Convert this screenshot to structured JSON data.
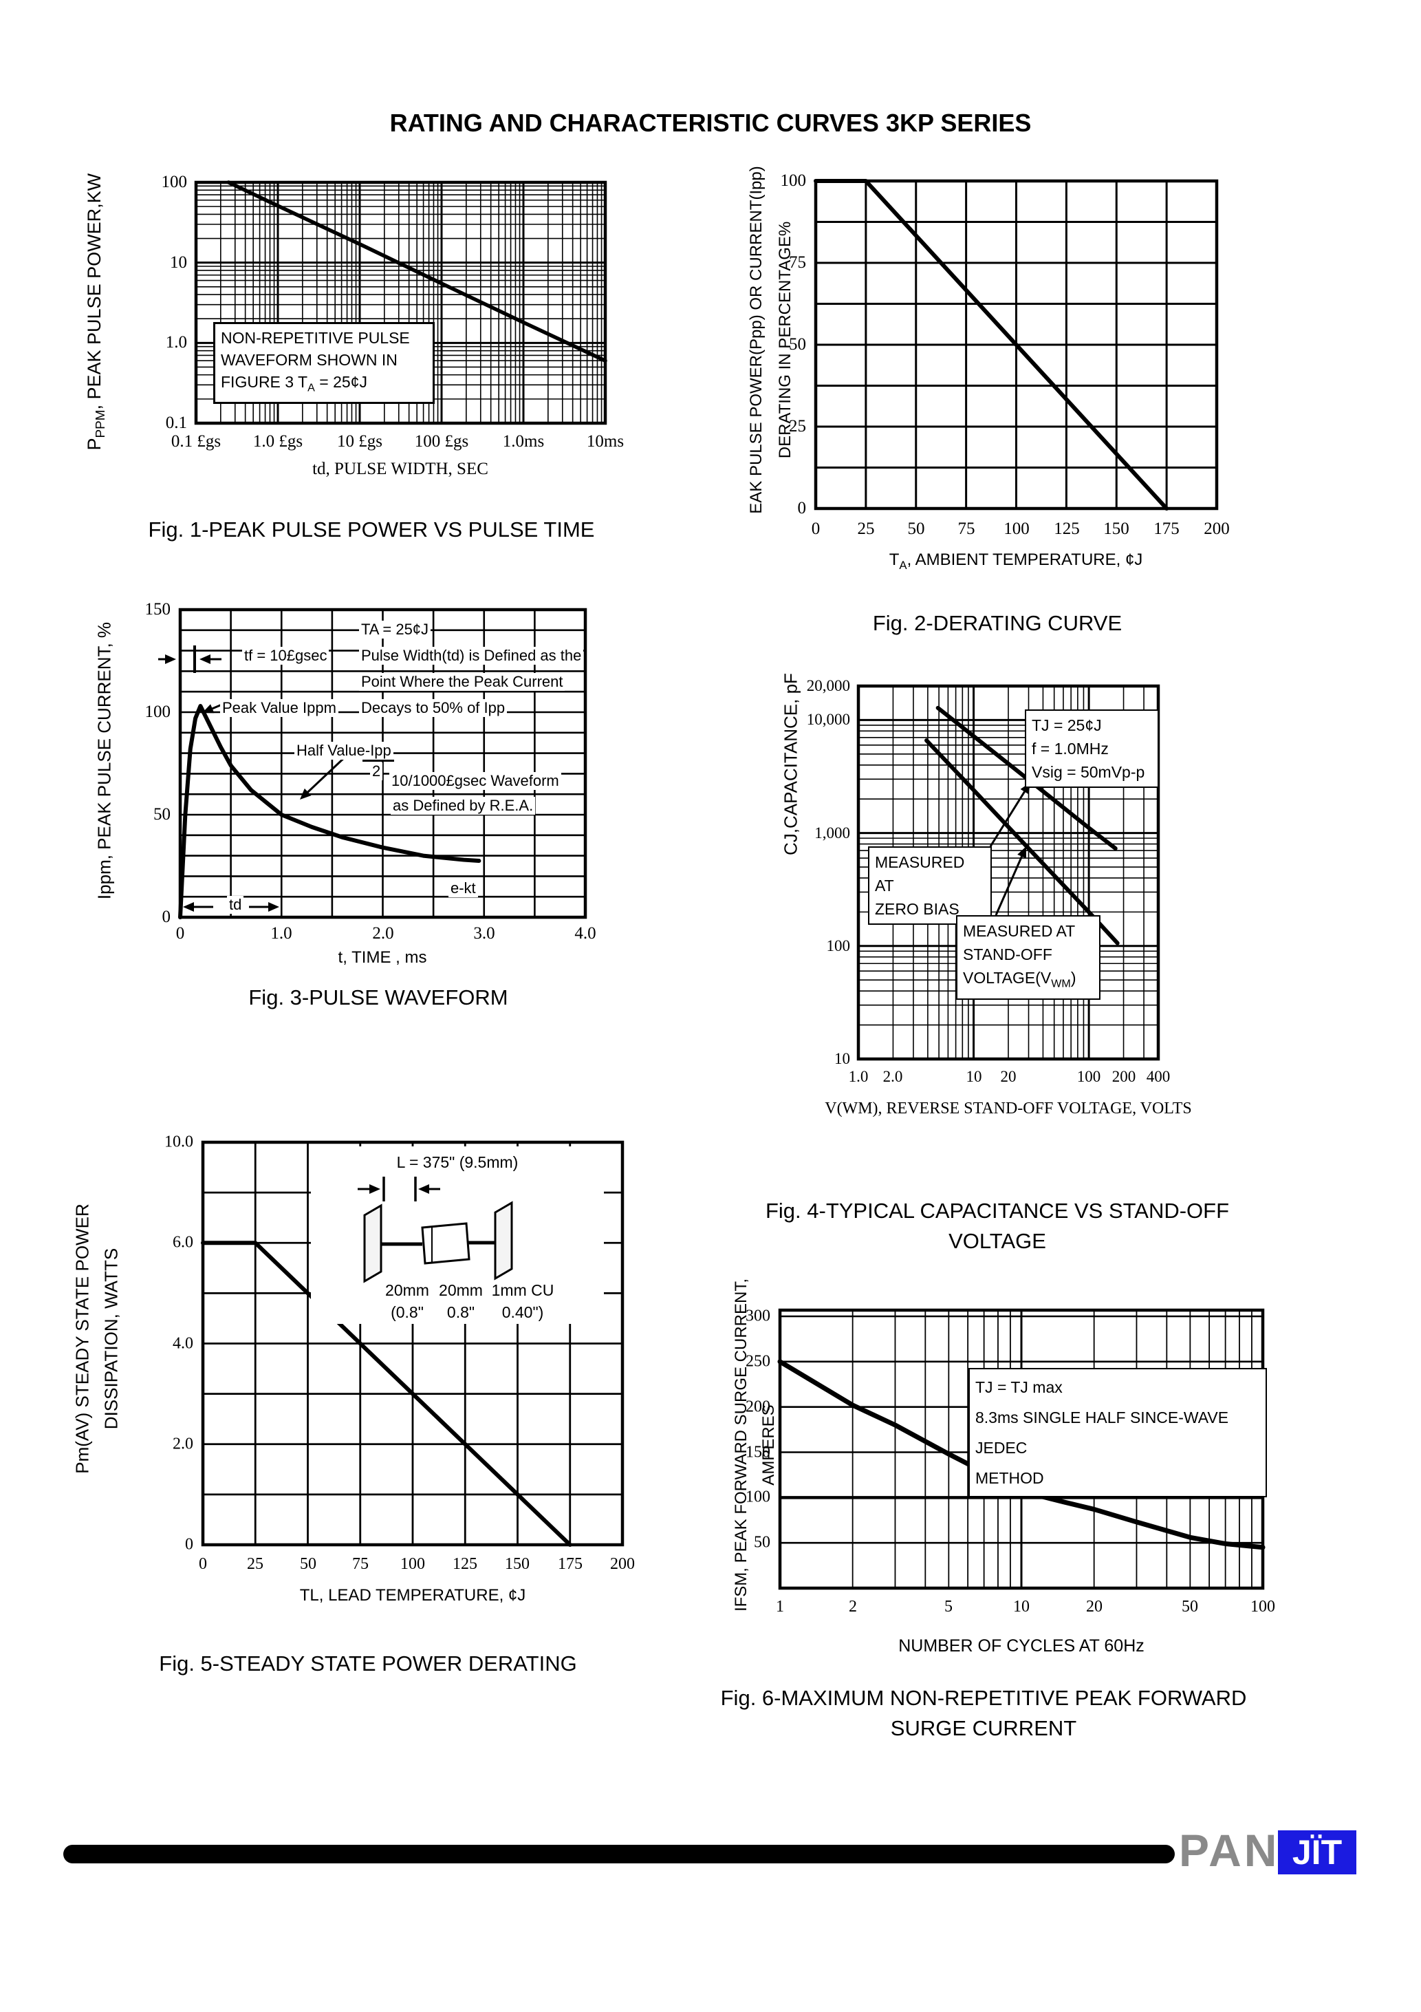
{
  "page": {
    "title": "RATING AND CHARACTERISTIC CURVES 3KP SERIES"
  },
  "figures": {
    "fig1": {
      "ylabel_main": "P",
      "ylabel_sub": "PPM",
      "ylabel_rest": ", PEAK PULSE POWER,KW",
      "yticks": [
        "100",
        "10",
        "1.0",
        "0.1"
      ],
      "xticks": [
        "0.1 £gs",
        "1.0 £gs",
        "10 £gs",
        "100 £gs",
        "1.0ms",
        "10ms"
      ],
      "xlabel": "td, PULSE WIDTH, SEC",
      "note1": "NON-REPETITIVE PULSE",
      "note2": "WAVEFORM SHOWN IN",
      "note3a": "FIGURE 3 T",
      "note3sub": "A",
      "note3b": " = 25¢J",
      "caption": "Fig. 1-PEAK PULSE POWER VS PULSE TIME"
    },
    "fig2": {
      "ylabel_line1": "EAK PULSE POWER(Ppp) OR CURRENT(Ipp)",
      "ylabel_line2": "DERATING IN PERCENTAGE%",
      "yticks": [
        "100",
        "75",
        "50",
        "25",
        "0"
      ],
      "xticks": [
        "0",
        "25",
        "50",
        "75",
        "100",
        "125",
        "150",
        "175",
        "200"
      ],
      "xlabel_a": "T",
      "xlabel_sub": "A",
      "xlabel_b": ", AMBIENT TEMPERATURE,  ¢J",
      "caption": "Fig. 2-DERATING CURVE"
    },
    "fig3": {
      "ylabel": "Ippm, PEAK PULSE CURRENT, %",
      "yticks": [
        "150",
        "100",
        "50",
        "0"
      ],
      "xticks": [
        "0",
        "1.0",
        "2.0",
        "3.0",
        "4.0"
      ],
      "xlabel": "t, TIME , ms",
      "ann_ta": "TA = 25¢J",
      "ann_tf": "tf = 10£gsec",
      "ann_def1": "Pulse Width(td) is Defined as the",
      "ann_def2": "Point Where the Peak Current",
      "ann_def3": "Decays to 50% of Ipp",
      "ann_peak": "Peak Value Ippm",
      "ann_half": "Half Value-Ipp",
      "ann_half_den": "2",
      "ann_wave1": "10/1000£gsec Waveform",
      "ann_wave2": "as Defined by R.E.A.",
      "ann_ekt": "e-kt",
      "ann_td": "td",
      "caption": "Fig. 3-PULSE WAVEFORM"
    },
    "fig4": {
      "ylabel": "CJ,CAPACITANCE, pF",
      "yticks": [
        "20,000",
        "10,000",
        "1,000",
        "100",
        "10"
      ],
      "xticks": [
        "1.0",
        "2.0",
        "10",
        "20",
        "100",
        "200",
        "400"
      ],
      "xlabel": "V(WM), REVERSE STAND-OFF VOLTAGE, VOLTS",
      "cond1": "TJ = 25¢J",
      "cond2": "f = 1.0MHz",
      "cond3": "Vsig = 50mVp-p",
      "zb1": "MEASURED AT",
      "zb2": "ZERO BIAS",
      "so1": "MEASURED AT",
      "so2": "STAND-OFF",
      "so3a": "VOLTAGE(V",
      "so3sub": "WM",
      "so3b": ")",
      "caption1": "Fig. 4-TYPICAL CAPACITANCE VS STAND-OFF",
      "caption2": "VOLTAGE"
    },
    "fig5": {
      "ylabel_line1": "Pm(AV) STEADY STATE POWER",
      "ylabel_line2": "DISSIPATION, WATTS",
      "yticks": [
        "10.0",
        "6.0",
        "4.0",
        "2.0",
        "0"
      ],
      "xticks": [
        "0",
        "25",
        "50",
        "75",
        "100",
        "125",
        "150",
        "175",
        "200"
      ],
      "xlabel": "TL, LEAD TEMPERATURE,  ¢J",
      "inset_l": "L = 375\" (9.5mm)",
      "inset_d1": "20mm",
      "inset_d2": "20mm",
      "inset_d3": "1mm CU",
      "inset_e1": "(0.8\"",
      "inset_e2": "0.8\"",
      "inset_e3": "0.40\")",
      "caption": "Fig. 5-STEADY STATE POWER DERATING"
    },
    "fig6": {
      "ylabel_line1": "IFSM, PEAK FORWARD SURGE CURRENT,",
      "ylabel_line2": "AMPERES",
      "yticks": [
        "300",
        "250",
        "200",
        "150",
        "100",
        "50"
      ],
      "xticks": [
        "1",
        "2",
        "5",
        "10",
        "20",
        "50",
        "100"
      ],
      "xlabel": "NUMBER OF CYCLES AT 60Hz",
      "cond1": "TJ = TJ max",
      "cond2": "8.3ms SINGLE HALF SINCE-WAVE JEDEC",
      "cond3": "METHOD",
      "caption1": "Fig. 6-MAXIMUM NON-REPETITIVE PEAK FORWARD",
      "caption2": "SURGE CURRENT"
    }
  },
  "footer": {
    "brand_gray_text": "PAN",
    "brand_box_text": "JÏT",
    "brand_gray_color": "#8a8a8a",
    "brand_blue_color": "#1b1be0"
  },
  "chart_data": [
    {
      "id": "fig1",
      "type": "line",
      "title": "Fig. 1-PEAK PULSE POWER VS PULSE TIME",
      "xlabel": "td, PULSE WIDTH, SEC",
      "ylabel": "PPPM, PEAK PULSE POWER, KW",
      "x_scale": "log",
      "y_scale": "log",
      "xlim": [
        0.1,
        10000
      ],
      "ylim": [
        0.1,
        100
      ],
      "x_tick_labels": [
        "0.1 £gs",
        "1.0 £gs",
        "10 £gs",
        "100 £gs",
        "1.0ms",
        "10ms"
      ],
      "annotation": "NON-REPETITIVE PULSE WAVEFORM SHOWN IN FIGURE 3 TA = 25¢J",
      "points": [
        [
          0.25,
          100
        ],
        [
          1,
          51
        ],
        [
          10,
          17
        ],
        [
          100,
          5.5
        ],
        [
          1000,
          1.8
        ],
        [
          10000,
          0.6
        ]
      ]
    },
    {
      "id": "fig2",
      "type": "line",
      "title": "Fig. 2-DERATING CURVE",
      "xlabel": "TA, AMBIENT TEMPERATURE, ¢J",
      "ylabel": "PEAK PULSE POWER(Ppp) OR CURRENT(Ipp) DERATING IN PERCENTAGE%",
      "x_scale": "linear",
      "y_scale": "linear",
      "xlim": [
        0,
        200
      ],
      "ylim": [
        0,
        100
      ],
      "points": [
        [
          0,
          100
        ],
        [
          25,
          100
        ],
        [
          175,
          0
        ]
      ]
    },
    {
      "id": "fig3",
      "type": "line",
      "title": "Fig. 3-PULSE WAVEFORM",
      "xlabel": "t, TIME , ms",
      "ylabel": "Ippm, PEAK PULSE CURRENT, %",
      "x_scale": "linear",
      "y_scale": "linear",
      "xlim": [
        0,
        4
      ],
      "ylim": [
        0,
        150
      ],
      "annotations": [
        "TA = 25¢J",
        "tf = 10£gsec",
        "Pulse Width(td) is Defined as the Point Where the Peak Current Decays to 50% of Ipp",
        "Peak Value Ippm",
        "Half Value-Ipp/2",
        "10/1000£gsec Waveform as Defined by R.E.A.",
        "e-kt",
        "td"
      ],
      "points": [
        [
          0,
          0
        ],
        [
          0.05,
          50
        ],
        [
          0.1,
          82
        ],
        [
          0.15,
          97
        ],
        [
          0.2,
          103
        ],
        [
          0.3,
          93
        ],
        [
          0.4,
          83
        ],
        [
          0.5,
          74
        ],
        [
          0.7,
          62
        ],
        [
          1.0,
          50
        ],
        [
          1.3,
          44
        ],
        [
          1.6,
          39
        ],
        [
          2.0,
          34
        ],
        [
          2.4,
          30
        ],
        [
          2.8,
          28
        ],
        [
          2.95,
          27.5
        ]
      ]
    },
    {
      "id": "fig4",
      "type": "line",
      "title": "Fig. 4-TYPICAL CAPACITANCE VS STAND-OFF VOLTAGE",
      "xlabel": "V(WM), REVERSE STAND-OFF VOLTAGE, VOLTS",
      "ylabel": "CJ,CAPACITANCE, pF",
      "x_scale": "log",
      "y_scale": "log",
      "xlim": [
        1,
        400
      ],
      "ylim": [
        10,
        20000
      ],
      "conditions": [
        "TJ = 25¢J",
        "f = 1.0MHz",
        "Vsig = 50mVp-p"
      ],
      "series": [
        {
          "name": "MEASURED AT ZERO BIAS",
          "points": [
            [
              4.9,
              12800
            ],
            [
              10,
              7200
            ],
            [
              30,
              2960
            ],
            [
              100,
              1110
            ],
            [
              170,
              730
            ]
          ]
        },
        {
          "name": "MEASURED AT STAND-OFF VOLTAGE(VWM)",
          "points": [
            [
              3.9,
              6600
            ],
            [
              10,
              2400
            ],
            [
              30,
              730
            ],
            [
              100,
              200
            ],
            [
              177,
              106
            ]
          ]
        }
      ]
    },
    {
      "id": "fig5",
      "type": "line",
      "title": "Fig. 5-STEADY STATE POWER DERATING",
      "xlabel": "TL, LEAD TEMPERATURE, ¢J",
      "ylabel": "Pm(AV) STEADY STATE POWER DISSIPATION, WATTS",
      "x_scale": "linear",
      "y_scale": "linear",
      "xlim": [
        0,
        200
      ],
      "ylim": [
        0,
        10
      ],
      "y_gridline_values": [
        10,
        8,
        6,
        5,
        4,
        3,
        2,
        1,
        0
      ],
      "inset": "L = 375\" (9.5mm); 20mm (0.8\"), 20mm (0.8\"), 1mm CU (0.40\")",
      "points": [
        [
          0,
          6
        ],
        [
          25,
          6
        ],
        [
          75,
          4
        ],
        [
          125,
          2
        ],
        [
          175,
          0
        ]
      ]
    },
    {
      "id": "fig6",
      "type": "line",
      "title": "Fig. 6-MAXIMUM NON-REPETITIVE PEAK FORWARD SURGE CURRENT",
      "xlabel": "NUMBER OF CYCLES AT 60Hz",
      "ylabel": "IFSM, PEAK FORWARD SURGE CURRENT, AMPERES",
      "x_scale": "log",
      "y_scale": "linear",
      "xlim": [
        1,
        100
      ],
      "ylim": [
        0,
        310
      ],
      "conditions": [
        "TJ = TJ max",
        "8.3ms SINGLE HALF SINCE-WAVE JEDEC METHOD"
      ],
      "points": [
        [
          1,
          250
        ],
        [
          2,
          202
        ],
        [
          3,
          180
        ],
        [
          5,
          148
        ],
        [
          7,
          128
        ],
        [
          10,
          107
        ],
        [
          15,
          95
        ],
        [
          20,
          87
        ],
        [
          30,
          73
        ],
        [
          50,
          56
        ],
        [
          70,
          49
        ],
        [
          100,
          45
        ]
      ]
    }
  ]
}
